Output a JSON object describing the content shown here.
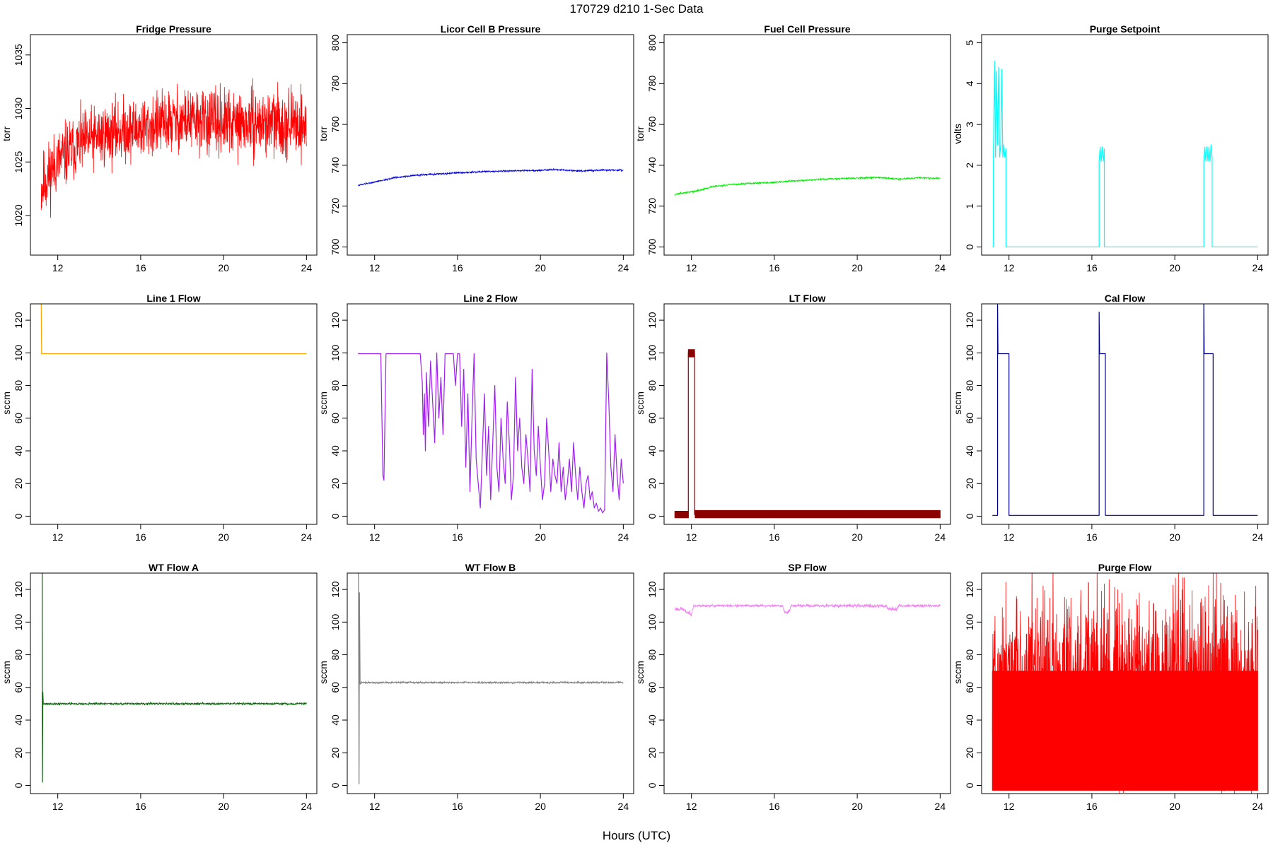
{
  "figure": {
    "title": "170729    d210    1-Sec Data",
    "xlabel": "Hours (UTC)",
    "x_ticks": [
      12,
      16,
      20,
      24
    ]
  },
  "chart_data": [
    {
      "type": "line",
      "title": "Fridge Pressure",
      "ylabel": "torr",
      "color": "#ff0000",
      "xlim": [
        10.68,
        24.5
      ],
      "ylim": [
        1016.3,
        1036.9
      ],
      "y_ticks": [
        1020,
        1025,
        1030,
        1035
      ],
      "series": [
        {
          "kind": "noise",
          "x": [
            11.2,
            11.5,
            12,
            12.5,
            13,
            14,
            15,
            16,
            17,
            18,
            19,
            20,
            21,
            22,
            23,
            24
          ],
          "center": [
            1022.5,
            1023.6,
            1025.1,
            1025.9,
            1026.6,
            1027.4,
            1027.9,
            1028.1,
            1028.6,
            1028.9,
            1028.8,
            1028.6,
            1028.5,
            1028.7,
            1028.6,
            1028.5
          ],
          "halfwidth": [
            3.8,
            3.8,
            3.6,
            3.6,
            3.5,
            3.5,
            3.5,
            3.5,
            3.5,
            3.6,
            3.5,
            3.6,
            3.5,
            3.5,
            3.6,
            3.5
          ],
          "seed": 11
        }
      ]
    },
    {
      "type": "line",
      "title": "Licor Cell B Pressure",
      "ylabel": "torr",
      "color": "#0000dd",
      "xlim": [
        10.68,
        24.5
      ],
      "ylim": [
        696,
        804
      ],
      "y_ticks": [
        700,
        720,
        740,
        760,
        780,
        800
      ],
      "series": [
        {
          "kind": "noise",
          "x": [
            11.2,
            12,
            13,
            14,
            15,
            16,
            17,
            18,
            19,
            20,
            20.5,
            21,
            22,
            23,
            24
          ],
          "center": [
            730.2,
            731.8,
            734.0,
            735.1,
            735.7,
            736.3,
            736.8,
            737.1,
            737.4,
            737.5,
            737.9,
            737.7,
            737.2,
            737.7,
            737.6
          ],
          "halfwidth": [
            0.5,
            0.5,
            0.5,
            0.5,
            0.5,
            0.5,
            0.5,
            0.5,
            0.5,
            0.5,
            0.5,
            0.5,
            0.5,
            0.5,
            0.5
          ],
          "seed": 12
        }
      ]
    },
    {
      "type": "line",
      "title": "Fuel Cell Pressure",
      "ylabel": "torr",
      "color": "#00ee00",
      "xlim": [
        10.68,
        24.5
      ],
      "ylim": [
        696,
        804
      ],
      "y_ticks": [
        700,
        720,
        740,
        760,
        780,
        800
      ],
      "series": [
        {
          "kind": "noise",
          "x": [
            11.2,
            12,
            12.5,
            13,
            14,
            15,
            16,
            17,
            18,
            19,
            20,
            21,
            22,
            23,
            24
          ],
          "center": [
            725.8,
            727.0,
            728.0,
            729.6,
            730.6,
            731.2,
            731.7,
            732.3,
            733.0,
            733.4,
            733.8,
            734.0,
            733.3,
            733.9,
            733.6
          ],
          "halfwidth": [
            0.5,
            0.5,
            0.5,
            0.5,
            0.5,
            0.5,
            0.5,
            0.5,
            0.5,
            0.5,
            0.5,
            0.5,
            0.5,
            0.5,
            0.5
          ],
          "seed": 13
        }
      ]
    },
    {
      "type": "line",
      "title": "Purge Setpoint",
      "ylabel": "volts",
      "color": "#00ffff",
      "xlim": [
        10.68,
        24.5
      ],
      "ylim": [
        -0.2,
        5.2
      ],
      "y_ticks": [
        0,
        1,
        2,
        3,
        4,
        5
      ],
      "series": [
        {
          "kind": "line",
          "x": [
            11.2,
            11.25,
            11.25,
            11.3,
            11.35,
            11.4,
            11.45,
            11.5,
            11.55,
            11.6,
            11.65,
            11.7,
            11.75,
            11.8,
            11.85,
            11.85,
            11.9,
            16.35,
            16.35,
            16.4,
            16.45,
            16.5,
            16.55,
            16.6,
            16.6,
            16.65,
            21.4,
            21.4,
            21.45,
            21.5,
            21.55,
            21.6,
            21.65,
            21.7,
            21.75,
            21.8,
            21.8,
            21.85,
            24.0
          ],
          "y": [
            0,
            0,
            2.3,
            4.55,
            2.2,
            4.3,
            2.5,
            4.4,
            2.2,
            2.5,
            4.35,
            2.2,
            2.5,
            2.2,
            2.4,
            0,
            0,
            0,
            2.1,
            2.45,
            2.1,
            2.45,
            2.1,
            2.4,
            0,
            0,
            0,
            2.1,
            2.45,
            2.1,
            2.45,
            2.1,
            2.45,
            2.1,
            2.5,
            2.2,
            0,
            0,
            0
          ]
        }
      ]
    },
    {
      "type": "line",
      "title": "Line 1 Flow",
      "ylabel": "sccm",
      "color": "#ffa500",
      "xlim": [
        10.68,
        24.5
      ],
      "ylim": [
        -5,
        130
      ],
      "y_ticks": [
        0,
        20,
        40,
        60,
        80,
        100,
        120
      ],
      "series": [
        {
          "kind": "line",
          "x": [
            11.2,
            11.2,
            11.22,
            24.0
          ],
          "y": [
            130,
            130,
            99.5,
            99.5
          ]
        }
      ]
    },
    {
      "type": "line",
      "title": "Line 2 Flow",
      "ylabel": "sccm",
      "color": "#a020f0",
      "xlim": [
        10.68,
        24.5
      ],
      "ylim": [
        -5,
        130
      ],
      "y_ticks": [
        0,
        20,
        40,
        60,
        80,
        100,
        120
      ],
      "series": [
        {
          "kind": "line",
          "x": [
            11.2,
            11.3,
            11.6,
            11.9,
            12.3,
            12.4,
            12.45,
            12.55,
            12.6,
            13.0,
            13.5,
            14.0,
            14.2,
            14.3,
            14.35,
            14.4,
            14.45,
            14.5,
            14.6,
            14.7,
            14.8,
            14.9,
            15.0,
            15.1,
            15.2,
            15.3,
            15.4,
            15.5,
            15.6,
            15.7,
            15.8,
            15.9,
            16.0,
            16.1,
            16.2,
            16.3,
            16.4,
            16.5,
            16.6,
            16.7,
            16.8,
            16.9,
            17.0,
            17.1,
            17.2,
            17.3,
            17.4,
            17.5,
            17.6,
            17.7,
            17.8,
            17.9,
            18.0,
            18.1,
            18.2,
            18.3,
            18.4,
            18.5,
            18.6,
            18.7,
            18.8,
            18.9,
            19.0,
            19.1,
            19.2,
            19.3,
            19.4,
            19.5,
            19.6,
            19.7,
            19.8,
            19.9,
            20.0,
            20.1,
            20.2,
            20.3,
            20.4,
            20.5,
            20.6,
            20.7,
            20.8,
            20.9,
            21.0,
            21.1,
            21.2,
            21.3,
            21.4,
            21.5,
            21.6,
            21.7,
            21.8,
            21.9,
            22.0,
            22.1,
            22.2,
            22.3,
            22.4,
            22.5,
            22.6,
            22.7,
            22.8,
            22.9,
            23.0,
            23.1,
            23.2,
            23.3,
            23.4,
            23.5,
            23.6,
            23.7,
            23.8,
            23.9,
            24.0
          ],
          "y": [
            99.5,
            99.5,
            99.5,
            99.5,
            99.5,
            25.0,
            22.0,
            99.5,
            99.5,
            99.5,
            99.5,
            99.5,
            99.5,
            82.0,
            50.0,
            75.0,
            40.0,
            88.0,
            55.0,
            95.0,
            70.0,
            45.0,
            100.0,
            60.0,
            85.0,
            50.0,
            99.5,
            99.5,
            99.5,
            99.5,
            99.5,
            80.0,
            99.5,
            99.5,
            55.0,
            90.0,
            30.0,
            75.0,
            15.0,
            60.0,
            99.5,
            35.0,
            20.0,
            5.0,
            40.0,
            75.0,
            25.0,
            55.0,
            10.0,
            45.0,
            80.0,
            30.0,
            15.0,
            60.0,
            35.0,
            20.0,
            70.0,
            45.0,
            10.0,
            25.0,
            85.0,
            40.0,
            60.0,
            30.0,
            20.0,
            50.0,
            35.0,
            15.0,
            90.0,
            40.0,
            25.0,
            55.0,
            30.0,
            10.0,
            20.0,
            60.0,
            40.0,
            15.0,
            35.0,
            25.0,
            20.0,
            45.0,
            15.0,
            30.0,
            10.0,
            20.0,
            35.0,
            15.0,
            45.0,
            25.0,
            10.0,
            30.0,
            15.0,
            5.0,
            20.0,
            25.0,
            10.0,
            15.0,
            5.0,
            8.0,
            3.0,
            5.0,
            2.0,
            4.0,
            100.0,
            70.0,
            30.0,
            15.0,
            50.0,
            25.0,
            10.0,
            35.0,
            20.0
          ]
        }
      ]
    },
    {
      "type": "line",
      "title": "LT Flow",
      "ylabel": "sccm",
      "color": "#8b0000",
      "xlim": [
        10.68,
        24.5
      ],
      "ylim": [
        -5,
        130
      ],
      "y_ticks": [
        0,
        20,
        40,
        60,
        80,
        100,
        120
      ],
      "series": [
        {
          "kind": "band",
          "x": [
            11.2,
            11.85
          ],
          "lo": [
            -1.0,
            -1.0
          ],
          "hi": [
            3.0,
            3.0
          ]
        },
        {
          "kind": "band",
          "x": [
            11.85,
            12.15
          ],
          "lo": [
            97.5,
            97.5
          ],
          "hi": [
            102.0,
            102.0
          ]
        },
        {
          "kind": "band",
          "x": [
            12.18,
            24.0
          ],
          "lo": [
            -1.0,
            -1.0
          ],
          "hi": [
            3.5,
            3.5
          ]
        },
        {
          "kind": "line",
          "x": [
            11.85,
            11.85,
            11.85,
            12.15,
            12.15,
            12.18
          ],
          "y": [
            -1.0,
            1.0,
            100.0,
            100.0,
            1.0,
            1.0
          ]
        }
      ]
    },
    {
      "type": "line",
      "title": "Cal Flow",
      "ylabel": "sccm",
      "color": "#00008b",
      "xlim": [
        10.68,
        24.5
      ],
      "ylim": [
        -5,
        130
      ],
      "y_ticks": [
        0,
        20,
        40,
        60,
        80,
        100,
        120
      ],
      "series": [
        {
          "kind": "line",
          "x": [
            11.2,
            11.45,
            11.45,
            11.47,
            11.5,
            12.0,
            12.0,
            16.35,
            16.35,
            16.37,
            16.4,
            16.65,
            16.65,
            21.4,
            21.4,
            21.42,
            21.45,
            21.85,
            21.85,
            24.0
          ],
          "y": [
            0.5,
            0.5,
            130.0,
            99.5,
            99.5,
            99.5,
            0.5,
            0.5,
            125.0,
            99.5,
            99.5,
            99.5,
            0.5,
            0.5,
            130.0,
            99.5,
            99.5,
            99.5,
            0.5,
            0.5
          ]
        }
      ]
    },
    {
      "type": "line",
      "title": "WT Flow A",
      "ylabel": "sccm",
      "color": "#006400",
      "xlim": [
        10.68,
        24.5
      ],
      "ylim": [
        -5,
        130
      ],
      "y_ticks": [
        0,
        20,
        40,
        60,
        80,
        100,
        120
      ],
      "series": [
        {
          "kind": "noise",
          "x": [
            11.3,
            24.0
          ],
          "center": [
            50.0,
            50.0
          ],
          "halfwidth": [
            0.8,
            0.8
          ],
          "seed": 21
        },
        {
          "kind": "line",
          "x": [
            11.25,
            11.26,
            11.28,
            11.3
          ],
          "y": [
            130.0,
            2.0,
            57.0,
            50.0
          ]
        }
      ]
    },
    {
      "type": "line",
      "title": "WT Flow B",
      "ylabel": "sccm",
      "color": "#808080",
      "xlim": [
        10.68,
        24.5
      ],
      "ylim": [
        -5,
        130
      ],
      "y_ticks": [
        0,
        20,
        40,
        60,
        80,
        100,
        120
      ],
      "series": [
        {
          "kind": "noise",
          "x": [
            11.35,
            24.0
          ],
          "center": [
            63.0,
            63.0
          ],
          "halfwidth": [
            0.7,
            0.7
          ],
          "seed": 22
        },
        {
          "kind": "line",
          "x": [
            11.22,
            11.25,
            11.27,
            11.3,
            11.35
          ],
          "y": [
            130.0,
            1.0,
            118.0,
            62.0,
            63.0
          ]
        }
      ]
    },
    {
      "type": "line",
      "title": "SP Flow",
      "ylabel": "sccm",
      "color": "#ee82ee",
      "xlim": [
        10.68,
        24.5
      ],
      "ylim": [
        -5,
        130
      ],
      "y_ticks": [
        0,
        20,
        40,
        60,
        80,
        100,
        120
      ],
      "series": [
        {
          "kind": "noise",
          "x": [
            11.2,
            11.6,
            11.7,
            12.0,
            12.1,
            16.4,
            16.5,
            16.7,
            16.8,
            21.4,
            21.5,
            21.9,
            22.0,
            24.0
          ],
          "center": [
            108.0,
            108.0,
            106.5,
            105.0,
            110.0,
            110.0,
            106.0,
            106.0,
            110.0,
            110.0,
            108.0,
            108.0,
            110.0,
            110.0
          ],
          "halfwidth": [
            1.5,
            1.5,
            1.5,
            1.5,
            1.0,
            1.0,
            1.5,
            1.5,
            1.0,
            1.5,
            1.5,
            1.5,
            1.0,
            1.0
          ],
          "seed": 23
        }
      ]
    },
    {
      "type": "line",
      "title": "Purge Flow",
      "ylabel": "sccm",
      "color": "#ff0000",
      "xlim": [
        10.68,
        24.5
      ],
      "ylim": [
        -5,
        130
      ],
      "y_ticks": [
        0,
        20,
        40,
        60,
        80,
        100,
        120
      ],
      "series": [
        {
          "kind": "band",
          "x": [
            11.2,
            24.0
          ],
          "lo": [
            -3.0,
            -3.0
          ],
          "hi": [
            70.0,
            70.0
          ]
        },
        {
          "kind": "noise",
          "x": [
            11.2,
            24.0
          ],
          "center": [
            63.0,
            63.0
          ],
          "halfwidth": [
            67.0,
            67.0
          ],
          "seed": 24
        }
      ]
    }
  ]
}
